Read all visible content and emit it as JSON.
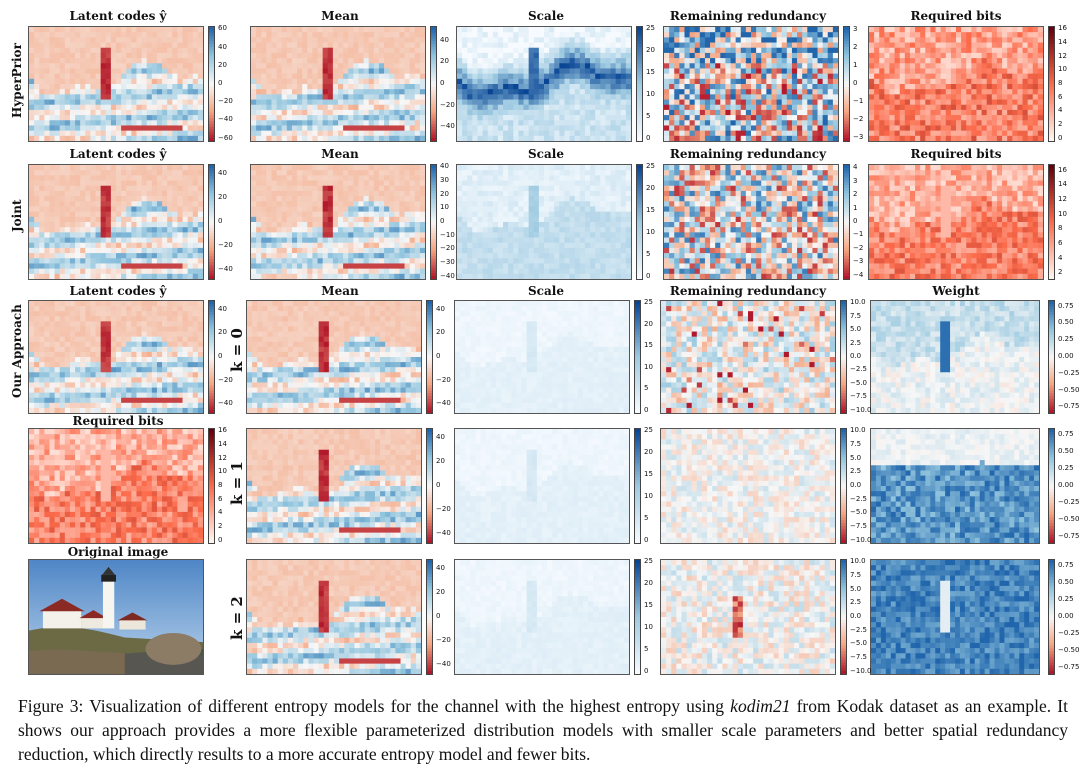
{
  "figure": {
    "col_titles_top": [
      "Latent codes  ŷ",
      "Mean",
      "Scale",
      "Remaining redundancy",
      "Required bits"
    ],
    "col_titles_our": [
      "Latent codes  ŷ",
      "Mean",
      "Scale",
      "Remaining redundancy",
      "Weight"
    ],
    "row_labels": [
      "HyperPrior",
      "Joint",
      "Our Approach"
    ],
    "k_labels": [
      "k = 0",
      "k = 1",
      "k = 2"
    ],
    "required_bits_title": "Required bits",
    "original_title": "Original image",
    "colorbars": {
      "hp_latent": [
        "60",
        "40",
        "20",
        "0",
        "−20",
        "−40",
        "−60"
      ],
      "hp_mean": [
        "40",
        "20",
        "0",
        "−20",
        "−40"
      ],
      "hp_scale": [
        "25",
        "20",
        "15",
        "10",
        "5",
        "0"
      ],
      "hp_red": [
        "3",
        "2",
        "1",
        "0",
        "−1",
        "−2",
        "−3"
      ],
      "hp_bits": [
        "16",
        "14",
        "12",
        "10",
        "8",
        "6",
        "4",
        "2",
        "0"
      ],
      "j_latent": [
        "40",
        "20",
        "0",
        "−20",
        "−40"
      ],
      "j_mean": [
        "40",
        "30",
        "20",
        "10",
        "0",
        "−10",
        "−20",
        "−30",
        "−40"
      ],
      "j_scale": [
        "25",
        "20",
        "15",
        "10",
        "5",
        "0"
      ],
      "j_red": [
        "4",
        "3",
        "2",
        "1",
        "0",
        "−1",
        "−2",
        "−3",
        "−4"
      ],
      "j_bits": [
        "16",
        "14",
        "12",
        "10",
        "8",
        "6",
        "4",
        "2"
      ],
      "o_latent": [
        "40",
        "20",
        "0",
        "−20",
        "−40"
      ],
      "o_mean": [
        "40",
        "20",
        "0",
        "−20",
        "−40"
      ],
      "o_scale": [
        "25",
        "20",
        "15",
        "10",
        "5",
        "0"
      ],
      "o_red": [
        "10.0",
        "7.5",
        "5.0",
        "2.5",
        "0.0",
        "−2.5",
        "−5.0",
        "−7.5",
        "−10.0"
      ],
      "o_weight": [
        "0.75",
        "0.50",
        "0.25",
        "0.00",
        "−0.25",
        "−0.50",
        "−0.75"
      ],
      "o_bits": [
        "16",
        "14",
        "12",
        "10",
        "8",
        "6",
        "4",
        "2",
        "0"
      ]
    },
    "colors": {
      "red": "#b2182b",
      "blue": "#2166ac",
      "white": "#f7f7f7"
    }
  },
  "caption": {
    "part1": "Figure 3:  Visualization of different entropy models for the channel with the highest entropy using ",
    "italic": "kodim21",
    "part2": " from Kodak dataset as an example. It shows our approach provides a more flexible parameterized distribution models with smaller scale parameters and better spatial redundancy reduction, which directly results to a more accurate entropy model and fewer bits."
  }
}
